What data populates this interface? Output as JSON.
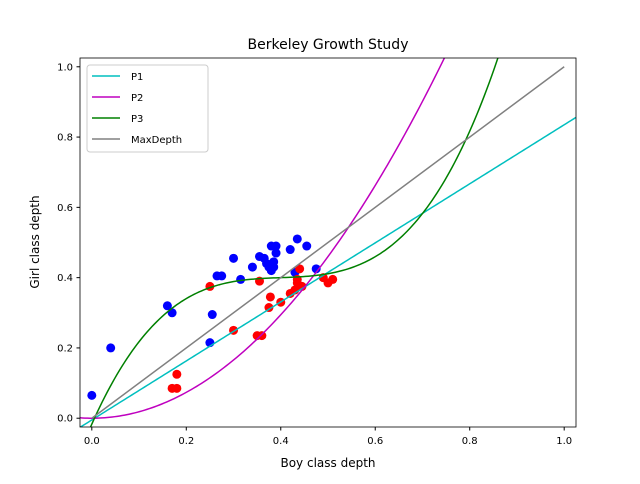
{
  "chart_data": {
    "type": "scatter",
    "title": "Berkeley Growth Study",
    "xlabel": "Boy class depth",
    "ylabel": "Girl class depth",
    "xlim": [
      -0.025,
      1.025
    ],
    "ylim": [
      -0.025,
      1.025
    ],
    "xticks": [
      "0.0",
      "0.2",
      "0.4",
      "0.6",
      "0.8",
      "1.0"
    ],
    "yticks": [
      "0.0",
      "0.2",
      "0.4",
      "0.6",
      "0.8",
      "1.0"
    ],
    "grid": false,
    "legend": "top-left",
    "scatter_series": [
      {
        "color": "#0000ff",
        "points": [
          [
            0.0,
            0.065
          ],
          [
            0.04,
            0.2
          ],
          [
            0.16,
            0.32
          ],
          [
            0.17,
            0.3
          ],
          [
            0.25,
            0.215
          ],
          [
            0.255,
            0.295
          ],
          [
            0.265,
            0.405
          ],
          [
            0.275,
            0.405
          ],
          [
            0.3,
            0.455
          ],
          [
            0.315,
            0.395
          ],
          [
            0.34,
            0.43
          ],
          [
            0.355,
            0.46
          ],
          [
            0.365,
            0.455
          ],
          [
            0.37,
            0.44
          ],
          [
            0.375,
            0.43
          ],
          [
            0.38,
            0.42
          ],
          [
            0.38,
            0.49
          ],
          [
            0.385,
            0.445
          ],
          [
            0.39,
            0.49
          ],
          [
            0.39,
            0.47
          ],
          [
            0.385,
            0.43
          ],
          [
            0.42,
            0.48
          ],
          [
            0.43,
            0.415
          ],
          [
            0.435,
            0.51
          ],
          [
            0.455,
            0.49
          ],
          [
            0.475,
            0.425
          ]
        ]
      },
      {
        "color": "#ff0000",
        "points": [
          [
            0.17,
            0.085
          ],
          [
            0.18,
            0.085
          ],
          [
            0.18,
            0.125
          ],
          [
            0.25,
            0.375
          ],
          [
            0.3,
            0.25
          ],
          [
            0.35,
            0.235
          ],
          [
            0.36,
            0.235
          ],
          [
            0.355,
            0.39
          ],
          [
            0.375,
            0.315
          ],
          [
            0.378,
            0.345
          ],
          [
            0.4,
            0.33
          ],
          [
            0.42,
            0.355
          ],
          [
            0.43,
            0.365
          ],
          [
            0.435,
            0.385
          ],
          [
            0.44,
            0.425
          ],
          [
            0.445,
            0.375
          ],
          [
            0.49,
            0.4
          ],
          [
            0.5,
            0.385
          ],
          [
            0.51,
            0.395
          ],
          [
            0.435,
            0.395
          ]
        ]
      }
    ],
    "series": [
      {
        "name": "P1",
        "color": "#00bfbf",
        "poly": [
          -0.005,
          0.84
        ]
      },
      {
        "name": "P2",
        "color": "#bf00bf",
        "poly": [
          0,
          0,
          1.84
        ]
      },
      {
        "name": "P3",
        "color": "#008000",
        "poly_centered": {
          "center": 0.4,
          "coeffs": [
            0.4,
            0.05,
            0,
            6.2
          ]
        }
      },
      {
        "name": "MaxDepth",
        "color": "#808080",
        "x": [
          0,
          1
        ],
        "y": [
          0,
          1
        ]
      }
    ]
  }
}
